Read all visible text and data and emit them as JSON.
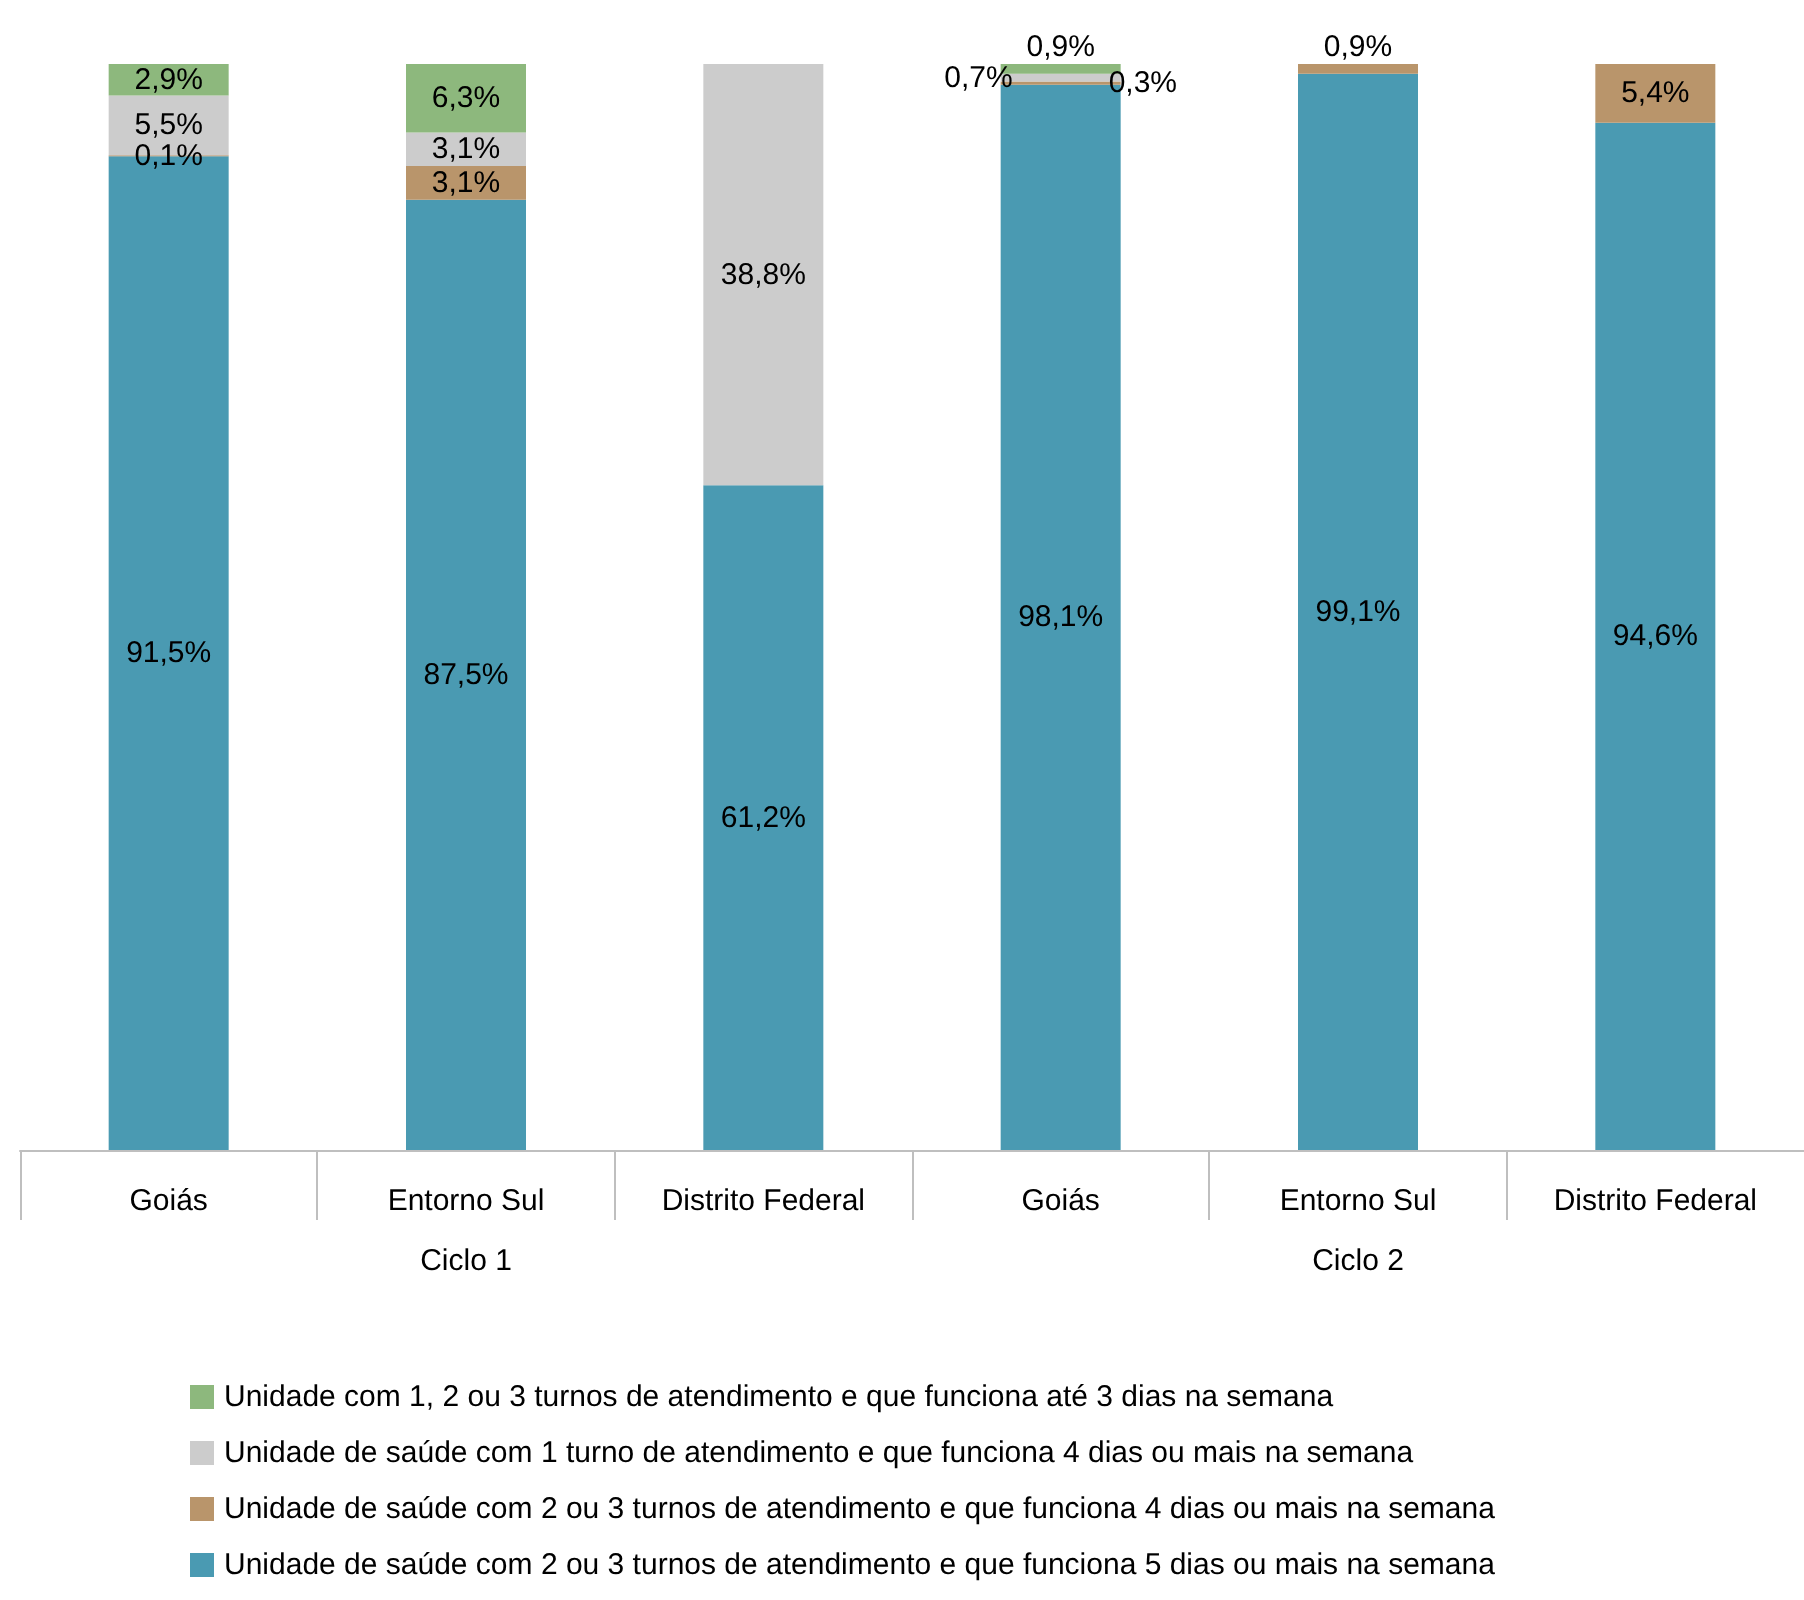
{
  "chart_data": {
    "type": "bar",
    "stacked": true,
    "categories": [
      "Goiás",
      "Entorno Sul",
      "Distrito Federal",
      "Goiás",
      "Entorno Sul",
      "Distrito Federal"
    ],
    "annotations": [
      "Ciclo 1",
      "Ciclo 2"
    ],
    "series": [
      {
        "name": "Unidade de saúde com 2 ou 3 turnos de atendimento e que funciona 5 dias ou mais na semana",
        "color": "#4a9ab2",
        "values": [
          91.5,
          87.5,
          61.2,
          98.1,
          99.1,
          94.6
        ],
        "value_labels": [
          "91,5%",
          "87,5%",
          "61,2%",
          "98,1%",
          "99,1%",
          "94,6%"
        ]
      },
      {
        "name": "Unidade de saúde com 2 ou 3 turnos de atendimento e que funciona 4 dias ou mais na semana",
        "color": "#b9956b",
        "values": [
          0.1,
          3.1,
          null,
          0.3,
          0.9,
          5.4
        ],
        "value_labels": [
          "0,1%",
          "3,1%",
          null,
          "0,3%",
          "0,9%",
          "5,4%"
        ]
      },
      {
        "name": "Unidade de saúde com 1 turno de atendimento e que funciona 4 dias ou mais na semana",
        "color": "#cccccc",
        "values": [
          5.5,
          3.1,
          38.8,
          0.7,
          null,
          null
        ],
        "value_labels": [
          "5,5%",
          "3,1%",
          "38,8%",
          "0,7%",
          null,
          null
        ]
      },
      {
        "name": "Unidade com 1, 2 ou 3 turnos de atendimento e que funciona até 3 dias na semana",
        "color": "#8db87d",
        "values": [
          2.9,
          6.3,
          null,
          0.9,
          null,
          null
        ],
        "value_labels": [
          "2,9%",
          "6,3%",
          null,
          "0,9%",
          null,
          null
        ]
      }
    ],
    "legend": "bottom"
  }
}
